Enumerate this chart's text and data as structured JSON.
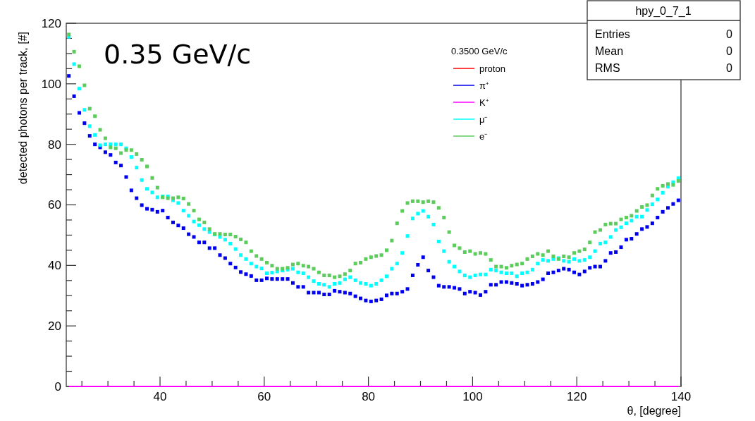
{
  "chart_data": {
    "type": "scatter",
    "xlabel": "θ, [degree]",
    "ylabel": "detected photons per track, [#]",
    "legend_title": "0.3500 GeV/c",
    "legend": "top right",
    "grid": false,
    "annotations": [
      "0.35 GeV/c",
      "hpy_0_7_1",
      "Entries 0",
      "Mean 0",
      "RMS 0"
    ],
    "xlim": [
      22,
      140
    ],
    "ylim": [
      0,
      120
    ],
    "xticks": [
      {
        "value": 25,
        "label": null
      },
      {
        "value": 30,
        "label": null
      },
      {
        "value": 35,
        "label": null
      },
      40,
      {
        "value": 45,
        "label": null
      },
      {
        "value": 50,
        "label": null
      },
      {
        "value": 55,
        "label": null
      },
      60,
      {
        "value": 65,
        "label": null
      },
      {
        "value": 70,
        "label": null
      },
      {
        "value": 75,
        "label": null
      },
      80,
      {
        "value": 85,
        "label": null
      },
      {
        "value": 90,
        "label": null
      },
      {
        "value": 95,
        "label": null
      },
      100,
      {
        "value": 105,
        "label": null
      },
      {
        "value": 110,
        "label": null
      },
      {
        "value": 115,
        "label": null
      },
      120,
      {
        "value": 125,
        "label": null
      },
      {
        "value": 130,
        "label": null
      },
      {
        "value": 135,
        "label": null
      },
      140
    ],
    "yticks": [
      0,
      {
        "value": 5,
        "label": null
      },
      {
        "value": 10,
        "label": null
      },
      {
        "value": 15,
        "label": null
      },
      20,
      {
        "value": 25,
        "label": null
      },
      {
        "value": 30,
        "label": null
      },
      {
        "value": 35,
        "label": null
      },
      40,
      {
        "value": 45,
        "label": null
      },
      {
        "value": 50,
        "label": null
      },
      {
        "value": 55,
        "label": null
      },
      60,
      {
        "value": 65,
        "label": null
      },
      {
        "value": 70,
        "label": null
      },
      {
        "value": 75,
        "label": null
      },
      80,
      {
        "value": 85,
        "label": null
      },
      {
        "value": 90,
        "label": null
      },
      {
        "value": 95,
        "label": null
      },
      100,
      {
        "value": 105,
        "label": null
      },
      {
        "value": 110,
        "label": null
      },
      {
        "value": 115,
        "label": null
      },
      120
    ],
    "x": [
      22.5,
      23.5,
      24.5,
      25.5,
      26.5,
      27.5,
      28.5,
      29.5,
      30.5,
      31.5,
      32.5,
      33.5,
      34.5,
      35.5,
      36.5,
      37.5,
      38.5,
      39.5,
      40.5,
      41.5,
      42.5,
      43.5,
      44.5,
      45.5,
      46.5,
      47.5,
      48.5,
      49.5,
      50.5,
      51.5,
      52.5,
      53.5,
      54.5,
      55.5,
      56.5,
      57.5,
      58.5,
      59.5,
      60.5,
      61.5,
      62.5,
      63.5,
      64.5,
      65.5,
      66.5,
      67.5,
      68.5,
      69.5,
      70.5,
      71.5,
      72.5,
      73.5,
      74.5,
      75.5,
      76.5,
      77.5,
      78.5,
      79.5,
      80.5,
      81.5,
      82.5,
      83.5,
      84.5,
      85.5,
      86.5,
      87.5,
      88.5,
      89.5,
      90.5,
      91.5,
      92.5,
      93.5,
      94.5,
      95.5,
      96.5,
      97.5,
      98.5,
      99.5,
      100.5,
      101.5,
      102.5,
      103.5,
      104.5,
      105.5,
      106.5,
      107.5,
      108.5,
      109.5,
      110.5,
      111.5,
      112.5,
      113.5,
      114.5,
      115.5,
      116.5,
      117.5,
      118.5,
      119.5,
      120.5,
      121.5,
      122.5,
      123.5,
      124.5,
      125.5,
      126.5,
      127.5,
      128.5,
      129.5,
      130.5,
      131.5,
      132.5,
      133.5,
      134.5,
      135.5,
      136.5,
      137.5,
      138.5,
      139.5
    ],
    "series": [
      {
        "name": "proton",
        "type": "line",
        "color": "#ff0000",
        "values": [
          null,
          null,
          null,
          null,
          null,
          null,
          null,
          null,
          null,
          null,
          null,
          null,
          null,
          null,
          null,
          null,
          null,
          null,
          null,
          null,
          null,
          null,
          null,
          null,
          null,
          null,
          null,
          null,
          null,
          null,
          null,
          null,
          null,
          null,
          null,
          null,
          null,
          null,
          null,
          null,
          null,
          null,
          null,
          null,
          null,
          null,
          null,
          null,
          null,
          null,
          null,
          null,
          null,
          null,
          null,
          null,
          null,
          null,
          null,
          null,
          null,
          null,
          null,
          null,
          null,
          null,
          null,
          null,
          null,
          null,
          null,
          null,
          null,
          null,
          null,
          null,
          null,
          null,
          null,
          null,
          null,
          null,
          null,
          null,
          null,
          null,
          null,
          null,
          null,
          null,
          null,
          null,
          null,
          null,
          null,
          null,
          null,
          null,
          null,
          null,
          null,
          null,
          null,
          null,
          null,
          null,
          null,
          null,
          null,
          null,
          null,
          null,
          null,
          null,
          null,
          null,
          null,
          null
        ]
      },
      {
        "name": "π⁺",
        "marker": "square",
        "color": "#0000ee",
        "values": [
          102.6,
          95.9,
          90.4,
          87.0,
          82.8,
          80.0,
          79.0,
          77.4,
          76.5,
          74.0,
          73.0,
          69.2,
          64.8,
          62.2,
          59.9,
          58.7,
          58.4,
          57.7,
          58.1,
          55.8,
          54.2,
          53.2,
          52.3,
          50.3,
          49.4,
          47.6,
          47.6,
          45.7,
          45.7,
          43.4,
          42.4,
          40.6,
          39.3,
          37.8,
          37.1,
          36.5,
          35.1,
          35.1,
          35.7,
          35.5,
          35.5,
          35.5,
          35.5,
          34.2,
          32.9,
          32.9,
          31.0,
          31.0,
          31.0,
          30.4,
          30.4,
          31.6,
          31.3,
          31.0,
          30.7,
          29.8,
          29.1,
          28.4,
          28.1,
          28.4,
          28.8,
          30.1,
          30.7,
          30.7,
          31.3,
          32.2,
          36.7,
          40.2,
          42.7,
          38.3,
          36.1,
          33.3,
          32.9,
          32.9,
          32.6,
          32.2,
          30.7,
          31.3,
          31.0,
          30.2,
          31.3,
          33.6,
          33.6,
          34.5,
          34.5,
          34.2,
          33.9,
          33.3,
          33.6,
          33.9,
          34.5,
          35.4,
          37.4,
          37.7,
          38.3,
          38.9,
          38.6,
          37.7,
          37.0,
          38.0,
          39.2,
          39.6,
          39.6,
          41.5,
          44.1,
          44.4,
          46.0,
          48.5,
          48.8,
          50.4,
          52.0,
          52.7,
          53.9,
          55.8,
          57.7,
          59.0,
          60.3,
          61.5
        ]
      },
      {
        "name": "K⁺",
        "type": "line",
        "color": "#ff00ff",
        "values": [
          0,
          0,
          0,
          0,
          0,
          0,
          0,
          0,
          0,
          0,
          0,
          0,
          0,
          0,
          0,
          0,
          0,
          0,
          0,
          0,
          0,
          0,
          0,
          0,
          0,
          0,
          0,
          0,
          0,
          0,
          0,
          0,
          0,
          0,
          0,
          0,
          0,
          0,
          0,
          0,
          0,
          0,
          0,
          0,
          0,
          0,
          0,
          0,
          0,
          0,
          0,
          0,
          0,
          0,
          0,
          0,
          0,
          0,
          0,
          0,
          0,
          0,
          0,
          0,
          0,
          0,
          0,
          0,
          0,
          0,
          0,
          0,
          0,
          0,
          0,
          0,
          0,
          0,
          0,
          0,
          0,
          0,
          0,
          0,
          0,
          0,
          0,
          0,
          0,
          0,
          0,
          0,
          0,
          0,
          0,
          0,
          0,
          0,
          0,
          0,
          0,
          0,
          0,
          0,
          0,
          0,
          0,
          0,
          0,
          0,
          0,
          0,
          0,
          0,
          0,
          0,
          0,
          0
        ]
      },
      {
        "name": "μ⁻",
        "marker": "square",
        "color": "#00ffff",
        "values": [
          115.5,
          106.5,
          98.4,
          91.4,
          86.0,
          83.1,
          79.7,
          80.0,
          80.0,
          80.0,
          80.0,
          78.7,
          75.8,
          72.3,
          68.2,
          65.3,
          64.1,
          62.5,
          62.8,
          62.8,
          61.5,
          60.6,
          58.1,
          56.4,
          54.5,
          53.3,
          52.0,
          51.0,
          50.2,
          49.4,
          48.5,
          47.2,
          45.4,
          43.4,
          42.1,
          40.6,
          39.6,
          39.0,
          37.4,
          37.6,
          38.0,
          38.3,
          38.6,
          38.9,
          37.7,
          37.4,
          36.1,
          34.8,
          33.9,
          33.6,
          32.9,
          33.9,
          34.2,
          35.4,
          36.1,
          35.1,
          34.2,
          33.9,
          33.3,
          33.9,
          35.1,
          36.4,
          38.9,
          40.6,
          44.1,
          49.7,
          55.5,
          57.1,
          58.0,
          56.1,
          53.5,
          47.9,
          44.7,
          41.2,
          39.6,
          38.0,
          36.7,
          36.1,
          36.7,
          37.0,
          37.0,
          38.6,
          38.3,
          37.7,
          37.4,
          37.4,
          36.4,
          37.4,
          37.7,
          38.6,
          40.6,
          41.8,
          41.5,
          42.1,
          42.4,
          41.5,
          41.2,
          42.1,
          41.5,
          41.8,
          42.7,
          44.7,
          47.2,
          47.6,
          49.4,
          51.7,
          52.6,
          53.9,
          54.8,
          56.1,
          56.1,
          58.3,
          60.2,
          61.8,
          64.0,
          66.0,
          67.5,
          68.8
        ]
      },
      {
        "name": "e⁻",
        "marker": "square",
        "color": "#5ccc5c",
        "values": [
          116.3,
          110.6,
          105.8,
          99.5,
          91.8,
          89.3,
          84.8,
          82.0,
          79.0,
          78.7,
          77.1,
          78.1,
          78.1,
          76.8,
          74.9,
          72.7,
          68.9,
          65.7,
          62.5,
          62.2,
          62.2,
          62.5,
          62.1,
          60.3,
          58.1,
          55.2,
          54.2,
          52.0,
          50.4,
          50.4,
          50.2,
          50.2,
          49.5,
          48.6,
          47.6,
          44.7,
          43.1,
          42.1,
          40.9,
          39.9,
          38.9,
          38.9,
          39.2,
          40.3,
          40.6,
          39.9,
          39.6,
          38.9,
          37.7,
          36.7,
          36.7,
          36.1,
          36.4,
          37.1,
          38.3,
          40.6,
          40.9,
          42.1,
          42.7,
          43.1,
          43.4,
          45.0,
          48.2,
          53.9,
          58.0,
          60.6,
          61.2,
          61.2,
          60.9,
          61.2,
          60.9,
          59.0,
          55.8,
          51.0,
          46.6,
          45.7,
          44.4,
          44.7,
          43.8,
          44.1,
          43.8,
          41.8,
          39.6,
          39.6,
          39.2,
          39.9,
          40.3,
          40.6,
          42.1,
          43.0,
          43.8,
          43.4,
          44.7,
          43.0,
          42.1,
          43.0,
          42.7,
          44.1,
          44.7,
          45.3,
          47.6,
          51.0,
          51.7,
          53.5,
          53.8,
          53.8,
          55.2,
          55.8,
          56.4,
          58.0,
          59.3,
          59.9,
          63.1,
          65.3,
          66.3,
          66.9,
          66.6,
          67.9
        ]
      }
    ]
  }
}
